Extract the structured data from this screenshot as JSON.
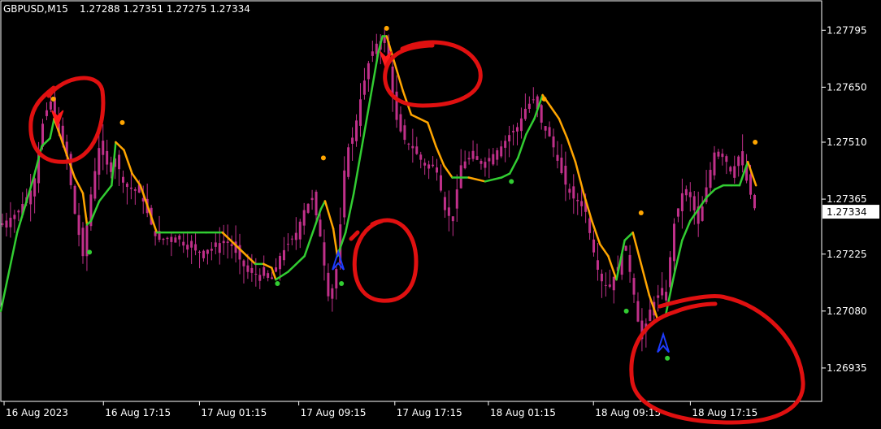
{
  "header": {
    "symbol": "GBPUSD,M15",
    "ohlc": "1.27288 1.27351 1.27275 1.27334"
  },
  "colors": {
    "background": "#000000",
    "frame": "#ffffff",
    "candle": "#c0308a",
    "line_down": "#ffa500",
    "line_up": "#32cd32",
    "dot_down": "#ffa500",
    "dot_up": "#32cd32",
    "arrow_buy": "#1e3cff",
    "arrow_sell": "#ff1a1a",
    "annotation": "#e01010",
    "price_box_bg": "#ffffff",
    "price_box_text": "#000000"
  },
  "chart_data": {
    "type": "line",
    "title": "GBPUSD,M15",
    "ohlc_text": "1.27288 1.27351 1.27275 1.27334",
    "ylim": [
      1.2685,
      1.2787
    ],
    "x_range": [
      0,
      100
    ],
    "y_ticks": [
      1.27795,
      1.2765,
      1.2751,
      1.27365,
      1.27225,
      1.2708,
      1.26935
    ],
    "y_tick_labels": [
      "1.27795",
      "1.27650",
      "1.27510",
      "1.27365",
      "1.27225",
      "1.27080",
      "1.26935"
    ],
    "x_ticks": [
      0.4,
      12.5,
      24.2,
      36.3,
      48.0,
      59.4,
      72.2,
      84.0
    ],
    "x_tick_labels": [
      "16 Aug 2023",
      "16 Aug 17:15",
      "17 Aug 01:15",
      "17 Aug 09:15",
      "17 Aug 17:15",
      "18 Aug 01:15",
      "18 Aug 09:15",
      "18 Aug 17:15"
    ],
    "current_price": "1.27334",
    "grid": false,
    "series": [
      {
        "kind": "price",
        "points": [
          [
            0,
            1.273
          ],
          [
            2,
            1.2733
          ],
          [
            4,
            1.274
          ],
          [
            5,
            1.2755
          ],
          [
            6,
            1.2762
          ],
          [
            7,
            1.2754
          ],
          [
            8,
            1.2748
          ],
          [
            9,
            1.2733
          ],
          [
            10,
            1.2722
          ],
          [
            11,
            1.2738
          ],
          [
            12,
            1.275
          ],
          [
            13,
            1.2745
          ],
          [
            14,
            1.2747
          ],
          [
            15,
            1.274
          ],
          [
            17,
            1.2738
          ],
          [
            19,
            1.2726
          ],
          [
            21,
            1.2727
          ],
          [
            22,
            1.2726
          ],
          [
            24,
            1.2723
          ],
          [
            26,
            1.2724
          ],
          [
            27,
            1.2726
          ],
          [
            28,
            1.2725
          ],
          [
            30,
            1.2718
          ],
          [
            32,
            1.2717
          ],
          [
            33,
            1.2716
          ],
          [
            34,
            1.2722
          ],
          [
            36,
            1.2728
          ],
          [
            37,
            1.2734
          ],
          [
            38,
            1.2737
          ],
          [
            39,
            1.2726
          ],
          [
            40,
            1.271
          ],
          [
            41,
            1.272
          ],
          [
            42,
            1.2748
          ],
          [
            43,
            1.2753
          ],
          [
            44,
            1.2764
          ],
          [
            45,
            1.2773
          ],
          [
            46,
            1.2777
          ],
          [
            47,
            1.2776
          ],
          [
            48,
            1.2758
          ],
          [
            49,
            1.2752
          ],
          [
            50,
            1.275
          ],
          [
            52,
            1.2744
          ],
          [
            53,
            1.2746
          ],
          [
            54,
            1.2734
          ],
          [
            55,
            1.2731
          ],
          [
            56,
            1.2745
          ],
          [
            57,
            1.2747
          ],
          [
            59,
            1.2746
          ],
          [
            61,
            1.275
          ],
          [
            62,
            1.2753
          ],
          [
            63,
            1.2755
          ],
          [
            64,
            1.276
          ],
          [
            65,
            1.2762
          ],
          [
            66,
            1.2755
          ],
          [
            67,
            1.2752
          ],
          [
            68,
            1.2745
          ],
          [
            69,
            1.2739
          ],
          [
            70,
            1.2736
          ],
          [
            71,
            1.2736
          ],
          [
            72,
            1.2725
          ],
          [
            73,
            1.2716
          ],
          [
            74,
            1.2714
          ],
          [
            75,
            1.2718
          ],
          [
            76,
            1.2725
          ],
          [
            77,
            1.2714
          ],
          [
            78,
            1.27
          ],
          [
            79,
            1.2708
          ],
          [
            80,
            1.2712
          ],
          [
            81,
            1.2712
          ],
          [
            82,
            1.273
          ],
          [
            83,
            1.2738
          ],
          [
            84,
            1.2737
          ],
          [
            85,
            1.273
          ],
          [
            86,
            1.274
          ],
          [
            87,
            1.2749
          ],
          [
            88,
            1.2748
          ],
          [
            89,
            1.2743
          ],
          [
            90,
            1.2748
          ],
          [
            91,
            1.274
          ],
          [
            92,
            1.2733
          ]
        ]
      },
      {
        "kind": "trend_line",
        "points": [
          [
            0,
            1.2708
          ],
          [
            2,
            1.2728
          ],
          [
            4,
            1.2742
          ],
          [
            5,
            1.275
          ],
          [
            6,
            1.2752
          ],
          [
            6.5,
            1.2757
          ],
          [
            7,
            1.2754
          ],
          [
            8,
            1.2748
          ],
          [
            9,
            1.2742
          ],
          [
            10,
            1.2738
          ],
          [
            10.5,
            1.273
          ],
          [
            11,
            1.2731
          ],
          [
            12,
            1.2736
          ],
          [
            13.5,
            1.274
          ],
          [
            14,
            1.2751
          ],
          [
            15,
            1.2749
          ],
          [
            16,
            1.2743
          ],
          [
            17,
            1.274
          ],
          [
            19,
            1.2728
          ],
          [
            21,
            1.2728
          ],
          [
            23,
            1.2728
          ],
          [
            25,
            1.2728
          ],
          [
            27,
            1.2728
          ],
          [
            28,
            1.2726
          ],
          [
            30,
            1.2722
          ],
          [
            31,
            1.272
          ],
          [
            32,
            1.272
          ],
          [
            33,
            1.2719
          ],
          [
            33.5,
            1.2716
          ],
          [
            35,
            1.2718
          ],
          [
            37,
            1.2722
          ],
          [
            38,
            1.2728
          ],
          [
            39,
            1.2734
          ],
          [
            39.5,
            1.2736
          ],
          [
            40.5,
            1.2729
          ],
          [
            41,
            1.2722
          ],
          [
            42,
            1.2728
          ],
          [
            43,
            1.2738
          ],
          [
            44,
            1.275
          ],
          [
            45,
            1.2762
          ],
          [
            46,
            1.2774
          ],
          [
            46.5,
            1.2778
          ],
          [
            47,
            1.2778
          ],
          [
            48,
            1.2771
          ],
          [
            49,
            1.2764
          ],
          [
            50,
            1.2758
          ],
          [
            51,
            1.2757
          ],
          [
            52,
            1.2756
          ],
          [
            53,
            1.275
          ],
          [
            54,
            1.2745
          ],
          [
            55,
            1.2742
          ],
          [
            57,
            1.2742
          ],
          [
            59,
            1.2741
          ],
          [
            61,
            1.2742
          ],
          [
            62,
            1.2743
          ],
          [
            63,
            1.2747
          ],
          [
            64,
            1.2753
          ],
          [
            65,
            1.2757
          ],
          [
            66,
            1.2763
          ],
          [
            67,
            1.276
          ],
          [
            68,
            1.2757
          ],
          [
            69,
            1.2752
          ],
          [
            70,
            1.2746
          ],
          [
            71,
            1.2738
          ],
          [
            72,
            1.2731
          ],
          [
            73,
            1.2725
          ],
          [
            74,
            1.2722
          ],
          [
            75,
            1.2716
          ],
          [
            76,
            1.2726
          ],
          [
            77,
            1.2728
          ],
          [
            78,
            1.272
          ],
          [
            79,
            1.2712
          ],
          [
            80,
            1.2706
          ],
          [
            81,
            1.2707
          ],
          [
            82,
            1.2717
          ],
          [
            83,
            1.2726
          ],
          [
            84,
            1.2731
          ],
          [
            85,
            1.2734
          ],
          [
            86,
            1.2737
          ],
          [
            87,
            1.2739
          ],
          [
            88,
            1.274
          ],
          [
            89,
            1.274
          ],
          [
            90,
            1.274
          ],
          [
            91,
            1.2746
          ],
          [
            92,
            1.274
          ]
        ]
      },
      {
        "kind": "dots_down",
        "points": [
          [
            6.4,
            1.2762
          ],
          [
            14.8,
            1.2756
          ],
          [
            39.3,
            1.2747
          ],
          [
            47.0,
            1.278
          ],
          [
            66.2,
            1.2762
          ],
          [
            78.0,
            1.2733
          ],
          [
            91.9,
            1.2751
          ]
        ]
      },
      {
        "kind": "dots_up",
        "points": [
          [
            10.8,
            1.2723
          ],
          [
            33.7,
            1.2715
          ],
          [
            41.5,
            1.2715
          ],
          [
            62.2,
            1.2741
          ],
          [
            76.2,
            1.2708
          ],
          [
            81.2,
            1.2696
          ]
        ]
      },
      {
        "kind": "arrows_buy",
        "points": [
          [
            41.1,
            1.2721
          ],
          [
            80.7,
            1.27
          ]
        ]
      },
      {
        "kind": "arrows_sell",
        "points": [
          [
            6.9,
            1.2757
          ],
          [
            46.9,
            1.2772
          ]
        ]
      }
    ]
  }
}
